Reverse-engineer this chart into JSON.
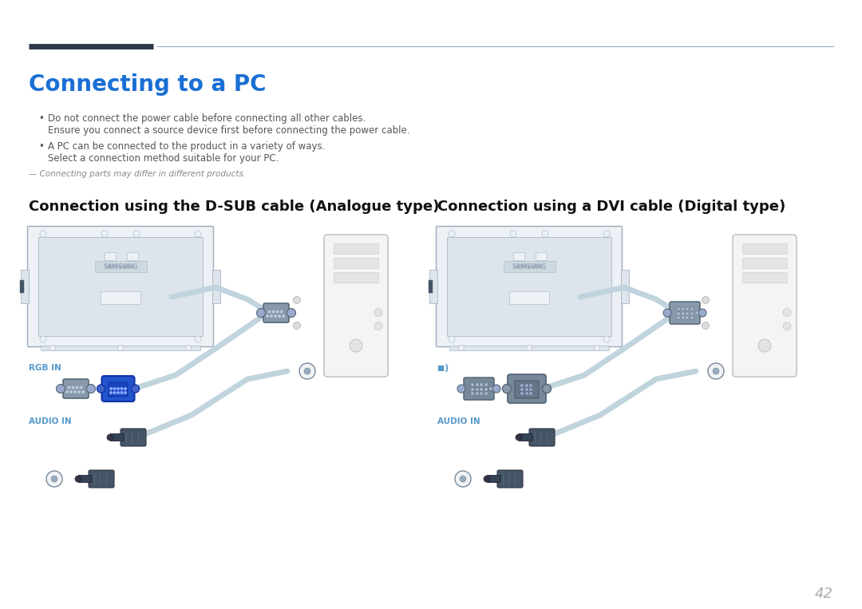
{
  "bg_color": "#ffffff",
  "title": "Connecting to a PC",
  "title_color": "#1a6fd4",
  "title_fontsize": 20,
  "header_thick_color": "#2d3848",
  "header_thin_color": "#99aabb",
  "bullet1_line1": "Do not connect the power cable before connecting all other cables.",
  "bullet1_line2": "Ensure you connect a source device first before connecting the power cable.",
  "bullet2_line1": "A PC can be connected to the product in a variety of ways.",
  "bullet2_line2": "Select a connection method suitable for your PC.",
  "note": "— Connecting parts may differ in different products.",
  "section1_title": "Connection using the D-SUB cable (Analogue type)",
  "section2_title": "Connection using a DVI cable (Digital type)",
  "section_title_fontsize": 13,
  "label_rgb": "RGB IN",
  "label_audio": "AUDIO IN",
  "label_dvi_icon": "◼)",
  "page_number": "42",
  "text_color": "#555555",
  "label_color": "#5599cc",
  "mon_fill": "#edf1f5",
  "mon_edge": "#9aaabb",
  "mon_inner_fill": "#dde4ec",
  "mon_inner_edge": "#b0bfcc",
  "samsung_color": "#99aabb",
  "samsung_box_fill": "#cdd8e0",
  "cable_color": "#c0d4de",
  "cable_lw": 5,
  "vga_blue_fill": "#2255cc",
  "vga_blue_edge": "#1133aa",
  "vga_gray_fill": "#8899aa",
  "vga_gray_edge": "#556677",
  "dvi_fill": "#8899aa",
  "dvi_edge": "#556677",
  "audio_dark": "#445566",
  "audio_socket_fill": "#f0f4f8",
  "audio_socket_edge": "#778899",
  "pc_fill": "#f4f4f4",
  "pc_edge": "#bbbbbb",
  "pc_line_fill": "#e4e4e4",
  "pc_line_edge": "#cccccc"
}
